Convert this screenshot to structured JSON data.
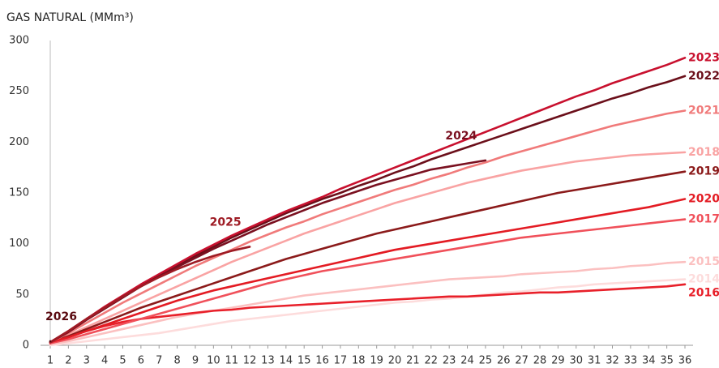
{
  "chart_data": {
    "type": "line",
    "title": "GAS NATURAL (MMm³)",
    "x": [
      1,
      2,
      3,
      4,
      5,
      6,
      7,
      8,
      9,
      10,
      11,
      12,
      13,
      14,
      15,
      16,
      17,
      18,
      19,
      20,
      21,
      22,
      23,
      24,
      25,
      26,
      27,
      28,
      29,
      30,
      31,
      32,
      33,
      34,
      35,
      36
    ],
    "xlim": [
      1,
      36
    ],
    "xticks": [
      1,
      2,
      3,
      4,
      5,
      6,
      7,
      8,
      9,
      10,
      11,
      12,
      13,
      14,
      15,
      16,
      17,
      18,
      19,
      20,
      21,
      22,
      23,
      24,
      25,
      26,
      27,
      28,
      29,
      30,
      31,
      32,
      33,
      34,
      35,
      36
    ],
    "ylim": [
      0,
      300
    ],
    "yticks": [
      0,
      50,
      100,
      150,
      200,
      250,
      300
    ],
    "grid": false,
    "series": [
      {
        "name": "2014",
        "color": "#fddcdc",
        "values": [
          0,
          2,
          4,
          6,
          8,
          10,
          12,
          15,
          18,
          21,
          24,
          26,
          28,
          30,
          32,
          34,
          36,
          38,
          40,
          42,
          43,
          45,
          46,
          48,
          50,
          52,
          53,
          55,
          57,
          58,
          60,
          61,
          62,
          63,
          64,
          65
        ]
      },
      {
        "name": "2015",
        "color": "#fbc0c0",
        "values": [
          1,
          4,
          8,
          12,
          16,
          20,
          24,
          28,
          31,
          34,
          37,
          40,
          43,
          46,
          49,
          51,
          53,
          55,
          57,
          59,
          61,
          63,
          65,
          66,
          67,
          68,
          70,
          71,
          72,
          73,
          75,
          76,
          78,
          79,
          81,
          82
        ]
      },
      {
        "name": "2016",
        "color": "#e8202a",
        "values": [
          2,
          8,
          14,
          19,
          23,
          26,
          28,
          30,
          32,
          34,
          35,
          37,
          38,
          39,
          40,
          41,
          42,
          43,
          44,
          45,
          46,
          47,
          48,
          48,
          49,
          50,
          51,
          52,
          52,
          53,
          54,
          55,
          56,
          57,
          58,
          60
        ]
      },
      {
        "name": "2017",
        "color": "#f0505a",
        "values": [
          2,
          6,
          11,
          16,
          21,
          26,
          31,
          36,
          41,
          46,
          51,
          56,
          61,
          65,
          69,
          73,
          76,
          79,
          82,
          85,
          88,
          91,
          94,
          97,
          100,
          103,
          106,
          108,
          110,
          112,
          114,
          116,
          118,
          120,
          122,
          124
        ]
      },
      {
        "name": "2018",
        "color": "#f9a3a3",
        "values": [
          3,
          10,
          18,
          26,
          34,
          42,
          50,
          58,
          66,
          74,
          82,
          89,
          96,
          103,
          110,
          116,
          122,
          128,
          134,
          140,
          145,
          150,
          155,
          160,
          164,
          168,
          172,
          175,
          178,
          181,
          183,
          185,
          187,
          188,
          189,
          190
        ]
      },
      {
        "name": "2019",
        "color": "#8b1a1a",
        "values": [
          3,
          9,
          16,
          23,
          30,
          37,
          43,
          49,
          55,
          61,
          67,
          73,
          79,
          85,
          90,
          95,
          100,
          105,
          110,
          114,
          118,
          122,
          126,
          130,
          134,
          138,
          142,
          146,
          150,
          153,
          156,
          159,
          162,
          165,
          168,
          171
        ]
      },
      {
        "name": "2020",
        "color": "#e31b23",
        "values": [
          3,
          8,
          14,
          20,
          26,
          32,
          38,
          44,
          49,
          54,
          58,
          62,
          66,
          70,
          74,
          78,
          82,
          86,
          90,
          94,
          97,
          100,
          103,
          106,
          109,
          112,
          115,
          118,
          121,
          124,
          127,
          130,
          133,
          136,
          140,
          144
        ]
      },
      {
        "name": "2021",
        "color": "#f07a7a",
        "values": [
          3,
          12,
          22,
          32,
          42,
          51,
          60,
          69,
          78,
          86,
          94,
          102,
          109,
          116,
          122,
          129,
          135,
          141,
          147,
          153,
          158,
          164,
          169,
          175,
          180,
          186,
          191,
          196,
          201,
          206,
          211,
          216,
          220,
          224,
          228,
          231
        ]
      },
      {
        "name": "2022",
        "color": "#6b0f1a",
        "values": [
          3,
          14,
          26,
          37,
          48,
          59,
          69,
          79,
          88,
          97,
          106,
          114,
          122,
          130,
          137,
          144,
          150,
          157,
          163,
          170,
          176,
          183,
          189,
          195,
          201,
          207,
          213,
          219,
          225,
          231,
          237,
          243,
          248,
          254,
          259,
          265
        ]
      },
      {
        "name": "2023",
        "color": "#c8102e",
        "values": [
          3,
          14,
          26,
          38,
          49,
          60,
          70,
          80,
          90,
          99,
          108,
          116,
          124,
          132,
          139,
          146,
          154,
          161,
          168,
          175,
          182,
          189,
          196,
          203,
          210,
          217,
          224,
          231,
          238,
          245,
          251,
          258,
          264,
          270,
          276,
          283
        ]
      },
      {
        "name": "2024",
        "color": "#7a1020",
        "values": [
          3,
          13,
          25,
          36,
          47,
          58,
          68,
          77,
          86,
          95,
          103,
          111,
          119,
          126,
          133,
          140,
          146,
          152,
          158,
          163,
          168,
          173,
          176,
          179,
          182,
          null,
          null,
          null,
          null,
          null,
          null,
          null,
          null,
          null,
          null,
          null
        ]
      },
      {
        "name": "2025",
        "color": "#9e1b24",
        "values": [
          3,
          14,
          26,
          37,
          48,
          58,
          67,
          75,
          82,
          88,
          93,
          97,
          null,
          null,
          null,
          null,
          null,
          null,
          null,
          null,
          null,
          null,
          null,
          null,
          null,
          null,
          null,
          null,
          null,
          null,
          null,
          null,
          null,
          null,
          null,
          null
        ]
      },
      {
        "name": "2026",
        "color": "#5a0a10",
        "values": [
          4,
          null,
          null,
          null,
          null,
          null,
          null,
          null,
          null,
          null,
          null,
          null,
          null,
          null,
          null,
          null,
          null,
          null,
          null,
          null,
          null,
          null,
          null,
          null,
          null,
          null,
          null,
          null,
          null,
          null,
          null,
          null,
          null,
          null,
          null,
          null
        ]
      }
    ]
  }
}
